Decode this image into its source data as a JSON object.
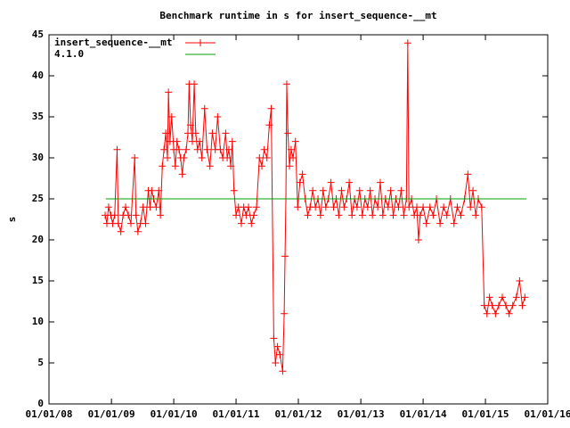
{
  "chart_data": {
    "type": "line",
    "title": "Benchmark runtime in s for insert_sequence-__mt",
    "y_label": "s",
    "xlim": [
      "2008-01-01",
      "2016-01-01"
    ],
    "xticks": [
      {
        "value": "2008-01-01",
        "label": "01/01/08"
      },
      {
        "value": "2009-01-01",
        "label": "01/01/09"
      },
      {
        "value": "2010-01-01",
        "label": "01/01/10"
      },
      {
        "value": "2011-01-01",
        "label": "01/01/11"
      },
      {
        "value": "2012-01-01",
        "label": "01/01/12"
      },
      {
        "value": "2013-01-01",
        "label": "01/01/13"
      },
      {
        "value": "2014-01-01",
        "label": "01/01/14"
      },
      {
        "value": "2015-01-01",
        "label": "01/01/15"
      },
      {
        "value": "2016-01-01",
        "label": "01/01/16"
      }
    ],
    "ylim": [
      0,
      45
    ],
    "yticks": [
      0,
      5,
      10,
      15,
      20,
      25,
      30,
      35,
      40,
      45
    ],
    "legend": "top-left",
    "series": [
      {
        "name": "insert_sequence-__mt",
        "color": "#ff0000",
        "markers": true,
        "x": [
          "2008-11-25",
          "2008-12-05",
          "2008-12-15",
          "2008-12-28",
          "2009-01-08",
          "2009-01-20",
          "2009-02-03",
          "2009-02-10",
          "2009-02-25",
          "2009-03-10",
          "2009-03-25",
          "2009-04-10",
          "2009-04-25",
          "2009-05-17",
          "2009-05-25",
          "2009-06-05",
          "2009-06-20",
          "2009-07-05",
          "2009-07-20",
          "2009-08-05",
          "2009-08-15",
          "2009-08-25",
          "2009-09-05",
          "2009-09-20",
          "2009-10-05",
          "2009-10-15",
          "2009-10-26",
          "2009-11-05",
          "2009-11-15",
          "2009-11-25",
          "2009-12-01",
          "2009-12-10",
          "2009-12-20",
          "2010-01-01",
          "2010-01-10",
          "2010-01-20",
          "2010-02-01",
          "2010-02-10",
          "2010-02-20",
          "2010-03-01",
          "2010-03-15",
          "2010-03-25",
          "2010-04-01",
          "2010-04-10",
          "2010-04-20",
          "2010-05-01",
          "2010-05-10",
          "2010-05-20",
          "2010-06-01",
          "2010-06-15",
          "2010-07-01",
          "2010-07-15",
          "2010-08-01",
          "2010-08-15",
          "2010-09-01",
          "2010-09-15",
          "2010-10-01",
          "2010-10-15",
          "2010-11-01",
          "2010-11-10",
          "2010-11-20",
          "2010-12-01",
          "2010-12-10",
          "2010-12-20",
          "2011-01-01",
          "2011-01-15",
          "2011-02-01",
          "2011-02-15",
          "2011-03-01",
          "2011-03-15",
          "2011-04-01",
          "2011-04-15",
          "2011-05-01",
          "2011-05-18",
          "2011-06-01",
          "2011-06-15",
          "2011-07-01",
          "2011-07-15",
          "2011-07-26",
          "2011-08-10",
          "2011-08-20",
          "2011-09-01",
          "2011-09-15",
          "2011-10-01",
          "2011-10-10",
          "2011-10-15",
          "2011-10-20",
          "2011-10-25",
          "2011-11-01",
          "2011-11-10",
          "2011-11-20",
          "2011-12-01",
          "2011-12-15",
          "2011-12-28",
          "2012-01-10",
          "2012-01-25",
          "2012-02-10",
          "2012-02-25",
          "2012-03-10",
          "2012-03-25",
          "2012-04-10",
          "2012-04-25",
          "2012-05-10",
          "2012-05-25",
          "2012-06-10",
          "2012-06-25",
          "2012-07-10",
          "2012-07-25",
          "2012-08-10",
          "2012-08-25",
          "2012-09-10",
          "2012-09-25",
          "2012-10-10",
          "2012-10-25",
          "2012-11-10",
          "2012-11-25",
          "2012-12-10",
          "2012-12-25",
          "2013-01-10",
          "2013-01-25",
          "2013-02-10",
          "2013-02-25",
          "2013-03-10",
          "2013-03-25",
          "2013-04-10",
          "2013-04-25",
          "2013-05-10",
          "2013-05-25",
          "2013-06-10",
          "2013-06-25",
          "2013-07-10",
          "2013-07-25",
          "2013-08-10",
          "2013-08-25",
          "2013-09-10",
          "2013-09-25",
          "2013-10-03",
          "2013-10-10",
          "2013-10-25",
          "2013-11-10",
          "2013-11-25",
          "2013-12-05",
          "2013-12-15",
          "2014-01-01",
          "2014-01-20",
          "2014-02-10",
          "2014-03-01",
          "2014-03-20",
          "2014-04-10",
          "2014-05-01",
          "2014-05-20",
          "2014-06-10",
          "2014-07-01",
          "2014-07-20",
          "2014-08-10",
          "2014-09-01",
          "2014-09-20",
          "2014-10-05",
          "2014-10-20",
          "2014-11-05",
          "2014-11-20",
          "2014-12-10",
          "2014-12-25",
          "2015-01-10",
          "2015-01-25",
          "2015-02-10",
          "2015-03-01",
          "2015-03-20",
          "2015-04-10",
          "2015-05-01",
          "2015-05-20",
          "2015-06-10",
          "2015-07-01",
          "2015-07-20",
          "2015-08-05",
          "2015-08-20"
        ],
        "values": [
          23,
          22,
          24,
          23,
          22,
          23,
          31,
          22,
          21,
          23,
          24,
          23,
          22,
          30,
          23,
          21,
          22,
          24,
          22,
          26,
          24,
          26,
          25,
          24,
          26,
          23,
          29,
          31,
          33,
          30,
          38,
          32,
          35,
          31,
          29,
          32,
          31,
          30,
          28,
          30,
          31,
          33,
          39,
          34,
          32,
          39,
          33,
          31,
          32,
          30,
          36,
          31,
          29,
          33,
          31,
          35,
          31,
          30,
          33,
          30,
          31,
          29,
          32,
          26,
          23,
          24,
          22,
          24,
          23,
          24,
          22,
          23,
          24,
          30,
          29,
          31,
          30,
          34,
          36,
          8,
          5,
          7,
          6,
          4,
          11,
          18,
          25,
          39,
          33,
          29,
          31,
          30,
          32,
          24,
          27,
          28,
          25,
          23,
          24,
          26,
          24,
          25,
          23,
          26,
          24,
          25,
          27,
          24,
          25,
          23,
          26,
          24,
          25,
          27,
          23,
          25,
          24,
          26,
          23,
          25,
          24,
          26,
          23,
          25,
          24,
          27,
          23,
          25,
          24,
          26,
          23,
          25,
          24,
          26,
          23,
          25,
          44,
          24,
          25,
          23,
          24,
          20,
          23,
          24,
          22,
          24,
          23,
          25,
          22,
          24,
          23,
          25,
          22,
          24,
          23,
          25,
          28,
          24,
          26,
          23,
          25,
          24,
          12,
          11,
          13,
          12,
          11,
          12,
          13,
          12,
          11,
          12,
          13,
          15,
          12,
          13
        ]
      },
      {
        "name": "4.1.0",
        "color": "#00a000",
        "markers": false,
        "x": [
          "2008-11-29",
          "2015-08-29"
        ],
        "values": [
          25,
          25
        ]
      }
    ]
  }
}
